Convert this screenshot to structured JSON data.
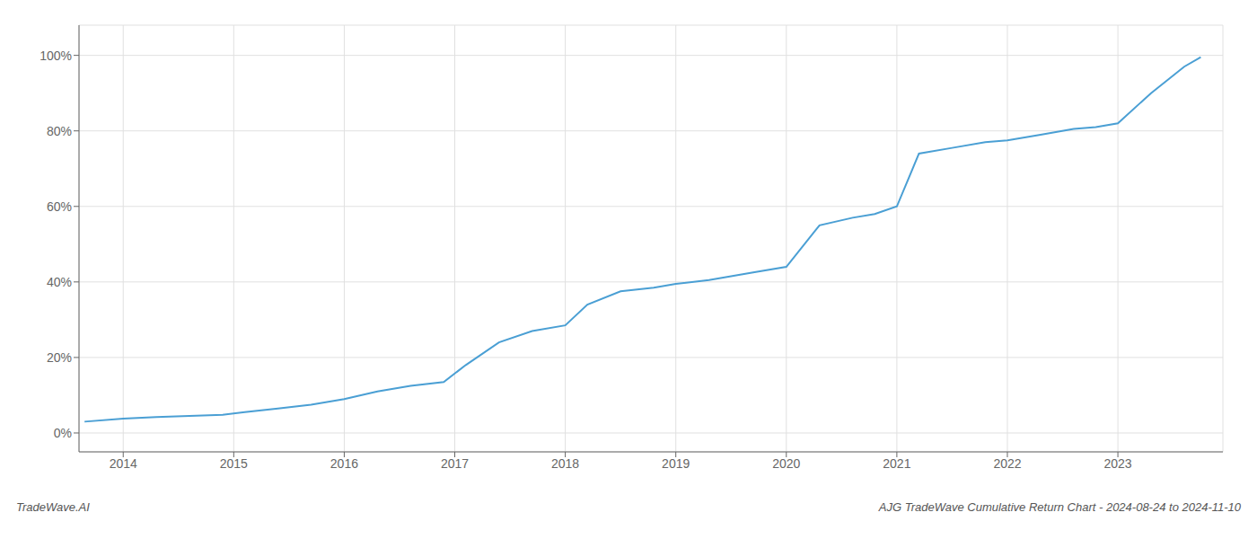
{
  "chart_data": {
    "type": "line",
    "x": [
      2013.65,
      2014.0,
      2014.3,
      2014.6,
      2014.9,
      2015.1,
      2015.4,
      2015.7,
      2016.0,
      2016.3,
      2016.6,
      2016.9,
      2017.1,
      2017.4,
      2017.7,
      2018.0,
      2018.2,
      2018.5,
      2018.8,
      2019.0,
      2019.3,
      2019.5,
      2019.7,
      2020.0,
      2020.3,
      2020.6,
      2020.8,
      2021.0,
      2021.2,
      2021.5,
      2021.8,
      2022.0,
      2022.3,
      2022.6,
      2022.8,
      2023.0,
      2023.3,
      2023.6,
      2023.75
    ],
    "values": [
      3.0,
      3.8,
      4.2,
      4.5,
      4.8,
      5.5,
      6.5,
      7.5,
      9.0,
      11.0,
      12.5,
      13.5,
      18.0,
      24.0,
      27.0,
      28.5,
      34.0,
      37.5,
      38.5,
      39.5,
      40.5,
      41.5,
      42.5,
      44.0,
      55.0,
      57.0,
      58.0,
      60.0,
      74.0,
      75.5,
      77.0,
      77.5,
      79.0,
      80.5,
      81.0,
      82.0,
      90.0,
      97.0,
      99.5
    ],
    "color": "#4a9fd4",
    "xlim": [
      2013.6,
      2023.95
    ],
    "xticks": [
      2014,
      2015,
      2016,
      2017,
      2018,
      2019,
      2020,
      2021,
      2022,
      2023
    ],
    "ylim": [
      -5,
      108
    ],
    "yticks": [
      {
        "value": 0,
        "label": "0%"
      },
      {
        "value": 20,
        "label": "20%"
      },
      {
        "value": 40,
        "label": "40%"
      },
      {
        "value": 60,
        "label": "60%"
      },
      {
        "value": 80,
        "label": "80%"
      },
      {
        "value": 100,
        "label": "100%"
      }
    ],
    "grid": true,
    "annotations": [
      "TradeWave.AI",
      "AJG TradeWave Cumulative Return Chart - 2024-08-24 to 2024-11-10"
    ]
  }
}
